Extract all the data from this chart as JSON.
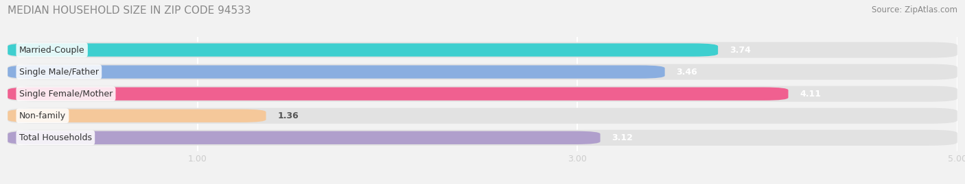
{
  "title": "MEDIAN HOUSEHOLD SIZE IN ZIP CODE 94533",
  "source": "Source: ZipAtlas.com",
  "categories": [
    "Married-Couple",
    "Single Male/Father",
    "Single Female/Mother",
    "Non-family",
    "Total Households"
  ],
  "values": [
    3.74,
    3.46,
    4.11,
    1.36,
    3.12
  ],
  "bar_colors": [
    "#3ecfcf",
    "#8aaee0",
    "#f06090",
    "#f5c89a",
    "#b09fcc"
  ],
  "xlim": [
    0,
    5.0
  ],
  "xticks": [
    1.0,
    3.0,
    5.0
  ],
  "xtick_labels": [
    "1.00",
    "3.00",
    "5.00"
  ],
  "title_fontsize": 11,
  "source_fontsize": 8.5,
  "bar_label_fontsize": 9,
  "category_fontsize": 9,
  "background_color": "#f2f2f2",
  "bar_background_color": "#e2e2e2",
  "title_color": "#888888",
  "source_color": "#888888"
}
